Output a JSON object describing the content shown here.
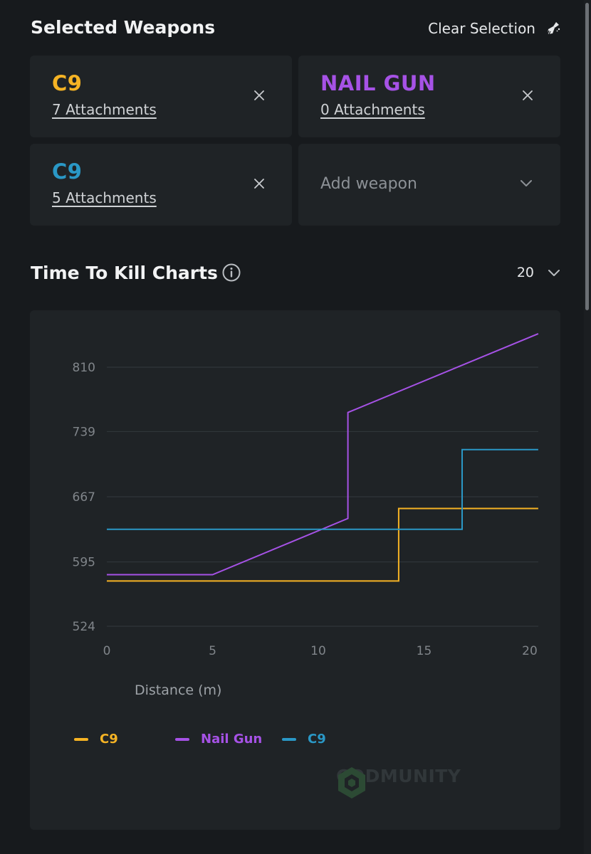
{
  "header": {
    "title": "Selected Weapons",
    "clear_label": "Clear Selection"
  },
  "weapons": [
    {
      "name": "C9",
      "attachments": "7 Attachments",
      "color": "#f5b324"
    },
    {
      "name": "NAIL GUN",
      "attachments": "0 Attachments",
      "color": "#a652e6"
    },
    {
      "name": "C9",
      "attachments": "5 Attachments",
      "color": "#2a98c6"
    }
  ],
  "add_weapon": {
    "label": "Add weapon"
  },
  "ttk": {
    "title": "Time To Kill Charts",
    "range_value": "20"
  },
  "icons": {
    "clear": "broom-icon",
    "remove": "close-icon",
    "add_dropdown": "chevron-down-icon",
    "info": "info-icon",
    "range_dropdown": "chevron-down-icon"
  },
  "chart_data": {
    "type": "line",
    "title": "",
    "xlabel": "Distance (m)",
    "ylabel": "",
    "xlim": [
      0,
      20
    ],
    "ylim": [
      524,
      810
    ],
    "x_ticks": [
      0,
      5,
      10,
      15,
      20
    ],
    "y_ticks": [
      524,
      595,
      667,
      739,
      810
    ],
    "grid": true,
    "legend_position": "bottom-left",
    "series": [
      {
        "name": "C9",
        "color": "#f5b324",
        "points": [
          [
            0,
            574
          ],
          [
            13.8,
            574
          ],
          [
            13.8,
            654
          ],
          [
            20.4,
            654
          ]
        ]
      },
      {
        "name": "Nail Gun",
        "color": "#a652e6",
        "points": [
          [
            0,
            581
          ],
          [
            5,
            581
          ],
          [
            11.4,
            643
          ],
          [
            11.4,
            760
          ],
          [
            20.4,
            847
          ]
        ]
      },
      {
        "name": "C9",
        "color": "#2a98c6",
        "points": [
          [
            0,
            631
          ],
          [
            16.8,
            631
          ],
          [
            16.8,
            719
          ],
          [
            20.4,
            719
          ]
        ]
      }
    ]
  },
  "watermark": {
    "text": "CODMUNITY"
  }
}
